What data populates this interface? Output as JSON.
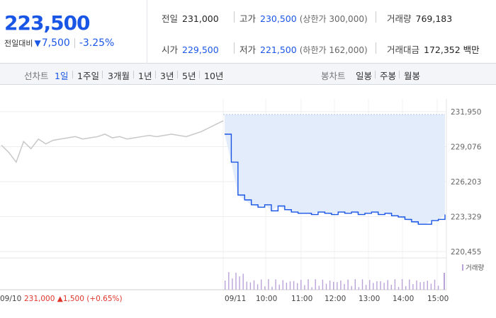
{
  "price": {
    "current": "223,500",
    "change_label": "전일대비",
    "change_icon": "down-triangle-icon",
    "change_value": "7,500",
    "change_percent": "-3.25%"
  },
  "stats": {
    "prev_close_label": "전일",
    "prev_close": "231,000",
    "high_label": "고가",
    "high": "230,500",
    "upper_limit": "(상한가 300,000)",
    "volume_label": "거래량",
    "volume": "769,183",
    "open_label": "시가",
    "open": "229,500",
    "low_label": "저가",
    "low": "221,500",
    "lower_limit": "(하한가 162,000)",
    "amount_label": "거래대금",
    "amount": "172,352 백만"
  },
  "toolbar": {
    "line_chart_label": "선차트",
    "periods": [
      "1일",
      "1주일",
      "3개월",
      "1년",
      "3년",
      "5년",
      "10년"
    ],
    "active_period": "1일",
    "candle_label": "봉차트",
    "candles": [
      "일봉",
      "주봉",
      "월봉"
    ]
  },
  "colors": {
    "accent_blue": "#1a56e6",
    "up_red": "#e0362c",
    "prev_line": "#c8c8c8",
    "fill": "#e3ecfb",
    "volume": "#b9a3d8"
  },
  "chart_data": {
    "type": "line",
    "y_ticks": [
      "231,950",
      "229,076",
      "226,203",
      "223,329",
      "220,455"
    ],
    "ylim": [
      220455,
      231950
    ],
    "x_labels": [
      "09/10",
      "09/11",
      "10:00",
      "11:00",
      "12:00",
      "13:00",
      "14:00",
      "15:00"
    ],
    "prev_day_summary": {
      "date": "09/10",
      "close": "231,000",
      "change_icon": "up-triangle-icon",
      "change": "1,500",
      "change_pct": "(+0.65%)"
    },
    "volume_legend": "거래량",
    "series": [
      {
        "values": [
          229200,
          228600,
          227800,
          229500,
          228900,
          229700,
          229300,
          229600,
          229700,
          229800,
          229900,
          229700,
          229800,
          229900,
          230100,
          229800,
          229900,
          229700,
          229800,
          229900,
          230000,
          229900,
          230000,
          230100,
          230000,
          229900,
          230100,
          230300,
          230600,
          230900,
          231200
        ]
      },
      {
        "values": [
          230100,
          227800,
          225100,
          224700,
          224300,
          224100,
          224300,
          223800,
          224200,
          223900,
          223700,
          223600,
          223600,
          223500,
          223700,
          223600,
          223500,
          223700,
          223600,
          223700,
          223500,
          223600,
          223700,
          223500,
          223600,
          223400,
          223300,
          223100,
          222900,
          222700,
          222700,
          223000,
          223100,
          223500
        ]
      }
    ]
  }
}
